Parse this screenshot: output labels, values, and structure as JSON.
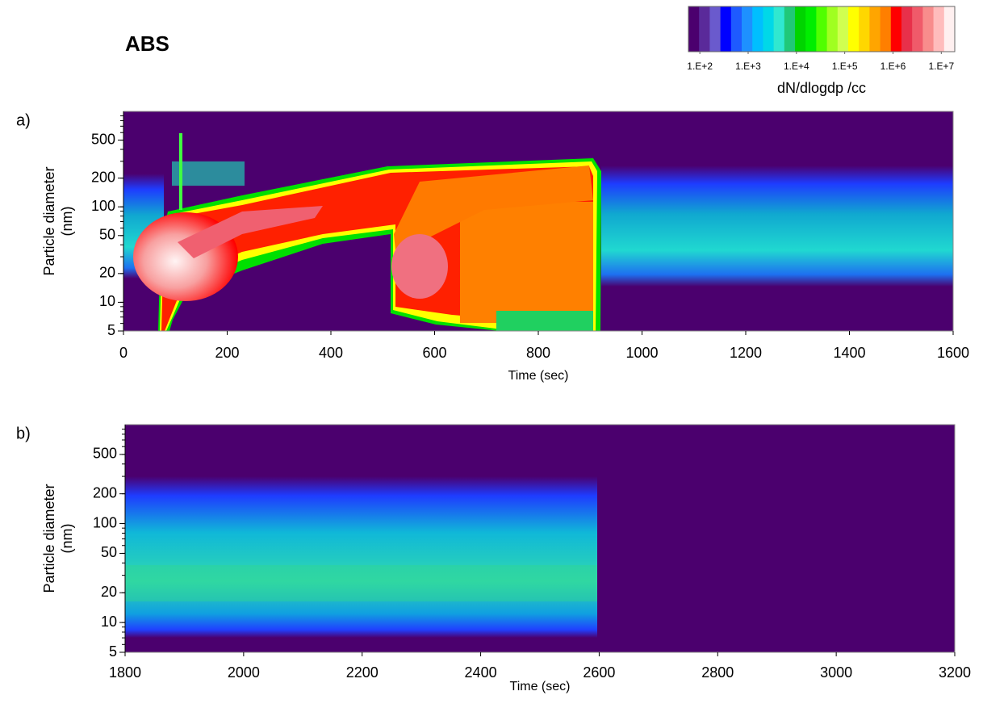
{
  "title": "ABS",
  "colorbar": {
    "label": "dN/dlogdp /cc",
    "log": true,
    "lim": [
      58,
      19000000
    ],
    "colors": [
      "#4b006e",
      "#5a2a9a",
      "#6a5acd",
      "#0000ff",
      "#1e5aff",
      "#1e90ff",
      "#00bfff",
      "#00d8e8",
      "#30e8d0",
      "#20c878",
      "#00d400",
      "#00ee00",
      "#50ff00",
      "#a0ff20",
      "#d0ff50",
      "#ffff00",
      "#ffd700",
      "#ffa500",
      "#ff7f00",
      "#ff0000",
      "#e8304a",
      "#f05a6a",
      "#f88c8c",
      "#ffbcbc",
      "#fff0f0"
    ],
    "ticks": [
      {
        "value": 100,
        "label": "1.E+2"
      },
      {
        "value": 1000,
        "label": "1.E+3"
      },
      {
        "value": 10000,
        "label": "1.E+4"
      },
      {
        "value": 100000,
        "label": "1.E+5"
      },
      {
        "value": 1000000,
        "label": "1.E+6"
      },
      {
        "value": 10000000,
        "label": "1.E+7"
      }
    ]
  },
  "chart_data": [
    {
      "type": "heatmap",
      "label": "a)",
      "xlabel": "Time (sec)",
      "ylabel": [
        "Particle diameter",
        "(nm)"
      ],
      "background": "#4b006e",
      "xlim": [
        0,
        1600
      ],
      "xticks": [
        0,
        200,
        400,
        600,
        800,
        1000,
        1200,
        1400,
        1600
      ],
      "ylim": [
        5,
        1000
      ],
      "ylog": true,
      "yticks": [
        5,
        10,
        20,
        50,
        100,
        200,
        500
      ]
    },
    {
      "type": "heatmap",
      "label": "b)",
      "xlabel": "Time (sec)",
      "ylabel": [
        "Particle diameter",
        "(nm)"
      ],
      "background": "#4b006e",
      "xlim": [
        1800,
        3200
      ],
      "xticks": [
        1800,
        2000,
        2200,
        2400,
        2600,
        2800,
        3000,
        3200
      ],
      "ylim": [
        5,
        1000
      ],
      "ylog": true,
      "yticks": [
        5,
        10,
        20,
        50,
        100,
        200,
        500
      ]
    }
  ]
}
